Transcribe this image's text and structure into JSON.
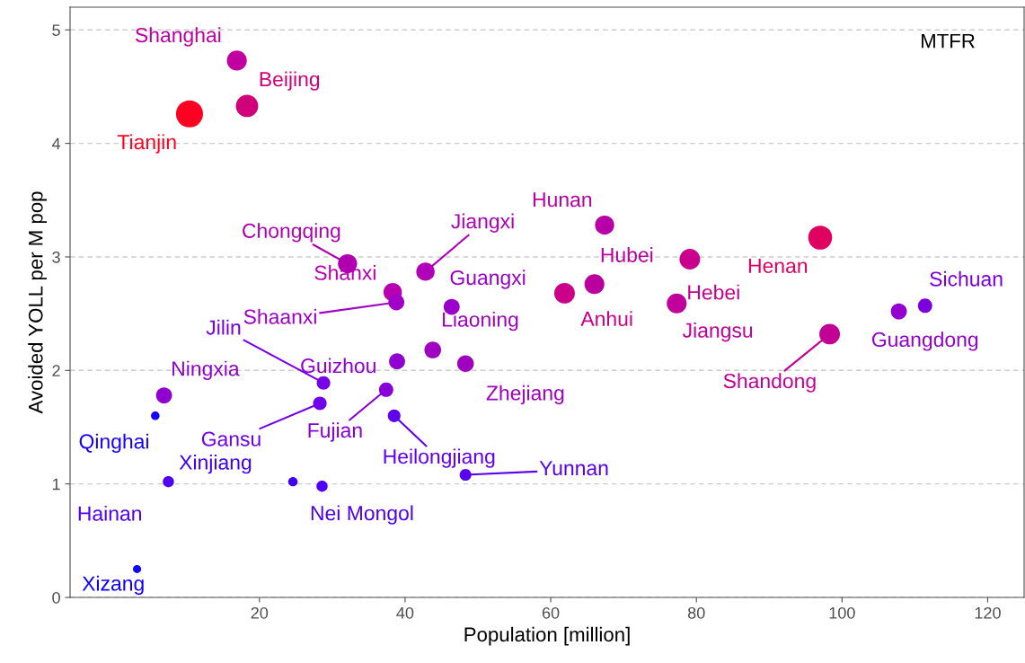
{
  "chart_data": {
    "type": "bubble",
    "xlabel": "Population [million]",
    "ylabel": "Avoided YOLL per M pop",
    "xlim": [
      -6,
      125
    ],
    "xticks": [
      20,
      40,
      60,
      80,
      100,
      120
    ],
    "ylim": [
      0,
      5.2
    ],
    "yticks": [
      0,
      1,
      2,
      3,
      4,
      5
    ],
    "grid": "y",
    "marker": "circle",
    "x": [
      16.9,
      18.3,
      10.4,
      32.1,
      42.8,
      38.3,
      38.8,
      46.4,
      67.4,
      66.0,
      61.9,
      79.1,
      77.3,
      97.0,
      98.3,
      107.8,
      111.4,
      43.8,
      38.9,
      48.3,
      28.8,
      6.9,
      28.3,
      37.4,
      38.5,
      5.7,
      48.3,
      24.6,
      28.6,
      7.5,
      3.2
    ],
    "values": [
      4.73,
      4.33,
      4.26,
      2.94,
      2.87,
      2.69,
      2.6,
      2.56,
      3.28,
      2.76,
      2.68,
      2.98,
      2.59,
      3.17,
      2.32,
      2.52,
      2.57,
      2.18,
      2.08,
      2.06,
      1.89,
      1.78,
      1.71,
      1.83,
      1.6,
      1.6,
      1.08,
      1.02,
      0.98,
      1.02,
      0.25
    ],
    "sizes": [
      0.54,
      0.68,
      1,
      0.5,
      0.46,
      0.46,
      0.35,
      0.35,
      0.5,
      0.54,
      0.58,
      0.58,
      0.54,
      0.78,
      0.58,
      0.35,
      0.28,
      0.38,
      0.35,
      0.38,
      0.25,
      0.35,
      0.25,
      0.28,
      0.22,
      0.1,
      0.19,
      0.12,
      0.17,
      0.17,
      0.09
    ],
    "colors": [
      "#c000a0",
      "#d0007a",
      "#ff0022",
      "#b000b0",
      "#b000b8",
      "#b800b0",
      "#a000c8",
      "#9900cc",
      "#b800a8",
      "#bb00a0",
      "#cc0088",
      "#c8008c",
      "#c0009a",
      "#e00060",
      "#c20096",
      "#9400d0",
      "#7a00e0",
      "#a000c0",
      "#9000d0",
      "#a000c0",
      "#7800e8",
      "#9000d0",
      "#7000ea",
      "#8800d8",
      "#6000f0",
      "#1800ff",
      "#5a00f0",
      "#4000f8",
      "#4c00f4",
      "#5000f2",
      "#1000ff"
    ],
    "annotations": [
      {
        "text": "Shanghai",
        "x": 16.9,
        "y": 4.73
      },
      {
        "text": "Beijing",
        "x": 18.3,
        "y": 4.33
      },
      {
        "text": "Tianjin",
        "x": 10.4,
        "y": 4.26
      },
      {
        "text": "Chongqing",
        "x": 32.1,
        "y": 2.94
      },
      {
        "text": "Jiangxi",
        "x": 42.8,
        "y": 2.87
      },
      {
        "text": "Shanxi",
        "x": 38.3,
        "y": 2.69
      },
      {
        "text": "Shaanxi",
        "x": 38.8,
        "y": 2.6
      },
      {
        "text": "Guangxi",
        "x": 46.4,
        "y": 2.56
      },
      {
        "text": "Hunan",
        "x": 67.4,
        "y": 3.28
      },
      {
        "text": "Hubei",
        "x": 66.0,
        "y": 2.76
      },
      {
        "text": "Anhui",
        "x": 61.9,
        "y": 2.68
      },
      {
        "text": "Hebei",
        "x": 79.1,
        "y": 2.98
      },
      {
        "text": "Jiangsu",
        "x": 77.3,
        "y": 2.59
      },
      {
        "text": "Henan",
        "x": 97.0,
        "y": 3.17
      },
      {
        "text": "Shandong",
        "x": 98.3,
        "y": 2.32
      },
      {
        "text": "Guangdong",
        "x": 107.8,
        "y": 2.52
      },
      {
        "text": "Sichuan",
        "x": 111.4,
        "y": 2.57
      },
      {
        "text": "Liaoning",
        "x": 43.8,
        "y": 2.18
      },
      {
        "text": "Guizhou",
        "x": 38.9,
        "y": 2.08
      },
      {
        "text": "Zhejiang",
        "x": 48.3,
        "y": 2.06
      },
      {
        "text": "Jilin",
        "x": 28.8,
        "y": 1.89
      },
      {
        "text": "Ningxia",
        "x": 6.9,
        "y": 1.78
      },
      {
        "text": "Gansu",
        "x": 28.3,
        "y": 1.71
      },
      {
        "text": "Fujian",
        "x": 37.4,
        "y": 1.83
      },
      {
        "text": "Heilongjiang",
        "x": 38.5,
        "y": 1.6
      },
      {
        "text": "Qinghai",
        "x": 5.7,
        "y": 1.6
      },
      {
        "text": "Yunnan",
        "x": 48.3,
        "y": 1.08
      },
      {
        "text": "Xinjiang",
        "x": 24.6,
        "y": 1.02
      },
      {
        "text": "Nei Mongol",
        "x": 28.6,
        "y": 0.98
      },
      {
        "text": "Hainan",
        "x": 7.5,
        "y": 1.02
      },
      {
        "text": "Xizang",
        "x": 3.2,
        "y": 0.25
      },
      "MTFR"
    ]
  }
}
